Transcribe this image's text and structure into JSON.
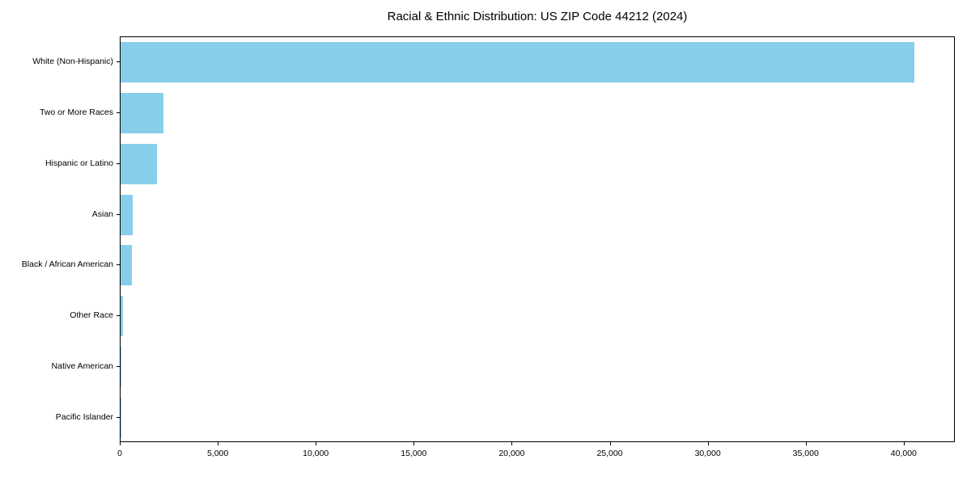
{
  "chart_data": {
    "type": "bar",
    "orientation": "horizontal",
    "title": "Racial & Ethnic Distribution: US ZIP Code 44212 (2024)",
    "categories": [
      "White (Non-Hispanic)",
      "Two or More Races",
      "Hispanic or Latino",
      "Asian",
      "Black / African American",
      "Other Race",
      "Native American",
      "Pacific Islander"
    ],
    "values": [
      40500,
      2200,
      1850,
      600,
      580,
      110,
      30,
      15
    ],
    "xlabel": "",
    "ylabel": "",
    "xlim": [
      0,
      42525
    ],
    "xticks": [
      0,
      5000,
      10000,
      15000,
      20000,
      25000,
      30000,
      35000,
      40000
    ],
    "bar_color": "#87CEEB",
    "grid": false,
    "legend": "none"
  }
}
